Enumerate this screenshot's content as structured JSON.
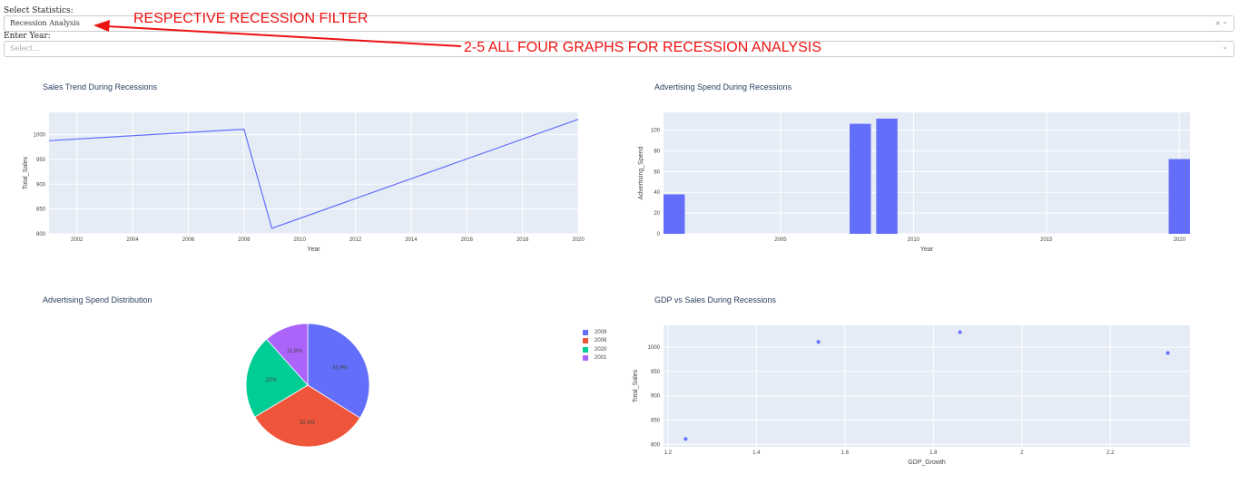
{
  "controls": {
    "stat_label": "Select Statistics:",
    "stat_value": "Recession Analysis",
    "stat_clear": "×",
    "stat_arrow": "⌄",
    "year_label": "Enter Year:",
    "year_placeholder": "Select...",
    "year_arrow": "⌄"
  },
  "annotations": {
    "filter_note": "RESPECTIVE RECESSION FILTER",
    "graphs_note": "2-5 ALL FOUR GRAPHS FOR RECESSION ANALYSIS",
    "color": "#ee1111"
  },
  "colors": {
    "plot_bg": "#e5ecf6",
    "grid": "#ffffff",
    "text": "#444444",
    "title": "#2a3f5f"
  },
  "chart_data": [
    {
      "id": "sales_trend",
      "type": "line",
      "title": "Sales Trend During Recessions",
      "xlabel": "Year",
      "ylabel": "Total_Sales",
      "x": [
        2001,
        2008,
        2009,
        2020
      ],
      "y": [
        988,
        1011,
        811,
        1031
      ],
      "xlim": [
        2001,
        2020
      ],
      "ylim": [
        800,
        1045
      ],
      "xticks": [
        2002,
        2004,
        2006,
        2008,
        2010,
        2012,
        2014,
        2016,
        2018,
        2020
      ],
      "yticks": [
        800,
        850,
        900,
        950,
        1000
      ],
      "color": "#636efa"
    },
    {
      "id": "ad_spend",
      "type": "bar",
      "title": "Advertising Spend During Recessions",
      "xlabel": "Year",
      "ylabel": "Advertising_Spend",
      "x": [
        2001,
        2008,
        2009,
        2020
      ],
      "values": [
        38,
        106,
        111,
        72
      ],
      "xlim": [
        2000.6,
        2020.4
      ],
      "ylim": [
        0,
        117
      ],
      "xticks": [
        2005,
        2010,
        2015,
        2020
      ],
      "yticks": [
        0,
        20,
        40,
        60,
        80,
        100
      ],
      "color": "#636efa"
    },
    {
      "id": "ad_distribution",
      "type": "pie",
      "title": "Advertising Spend Distribution",
      "labels": [
        "2009",
        "2008",
        "2020",
        "2001"
      ],
      "values": [
        33.9,
        32.4,
        22,
        11.6
      ],
      "text": [
        "33.9%",
        "32.4%",
        "22%",
        "11.6%"
      ],
      "colors": [
        "#636efa",
        "#ef553b",
        "#00cc96",
        "#ab63fa"
      ],
      "legend": "right"
    },
    {
      "id": "gdp_vs_sales",
      "type": "scatter",
      "title": "GDP vs Sales During Recessions",
      "xlabel": "GDP_Growth",
      "ylabel": "Total_Sales",
      "x": [
        1.24,
        1.54,
        1.86,
        2.33
      ],
      "y": [
        811,
        1011,
        1031,
        988
      ],
      "xlim": [
        1.19,
        2.38
      ],
      "ylim": [
        795,
        1045
      ],
      "xticks": [
        1.2,
        1.4,
        1.6,
        1.8,
        2,
        2.2
      ],
      "yticks": [
        800,
        850,
        900,
        950,
        1000
      ],
      "color": "#636efa"
    }
  ]
}
